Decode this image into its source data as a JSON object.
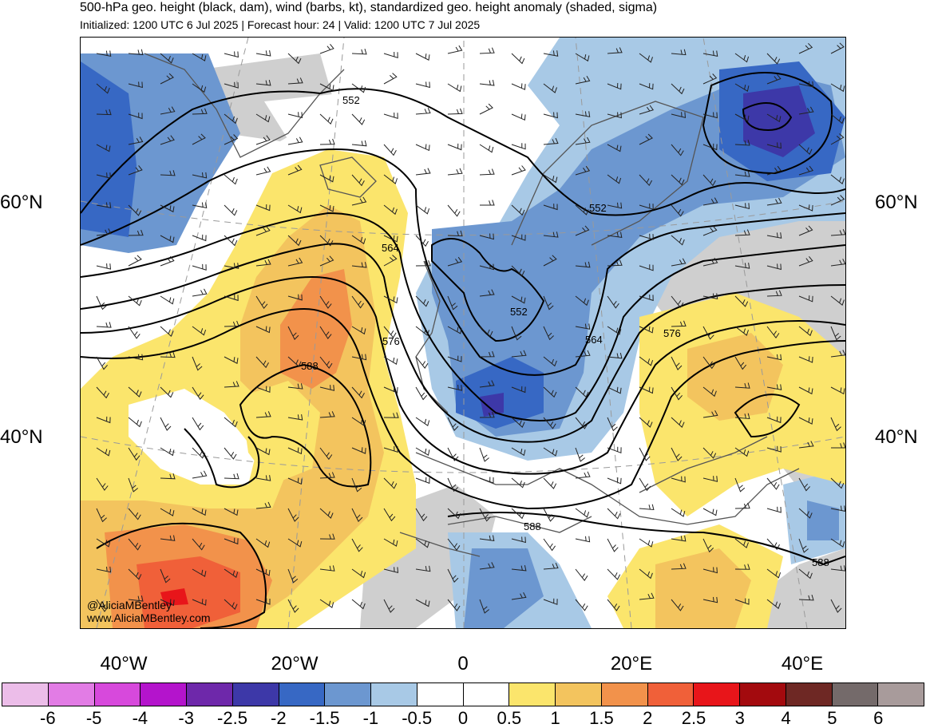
{
  "title": "500-hPa geo. height (black, dam), wind (barbs, kt), standardized geo. height anomaly (shaded, sigma)",
  "subtitle": "Initialized: 1200 UTC 6 Jul 2025 | Forecast hour: 24 | Valid: 1200 UTC 7 Jul 2025",
  "credit": {
    "handle": "@AliciaMBentley",
    "site": "www.AliciaMBentley.com"
  },
  "lat_labels": [
    "60°N",
    "40°N"
  ],
  "lon_labels": [
    "40°W",
    "20°W",
    "0",
    "20°E",
    "40°E"
  ],
  "contour_labels": [
    "552",
    "564",
    "552",
    "552",
    "576",
    "588",
    "564",
    "576",
    "588",
    "588"
  ],
  "colorbar": {
    "colors": [
      "#ecbde9",
      "#e27ce5",
      "#d749dc",
      "#b414cc",
      "#6e28aa",
      "#3d38a8",
      "#3768c4",
      "#6c97d0",
      "#a8c9e6",
      "#ffffff",
      "#ffffff",
      "#fbe56c",
      "#f3c45e",
      "#f2924b",
      "#f06039",
      "#e8151a",
      "#a30a0e",
      "#6e2824",
      "#746a6a",
      "#a89b9b"
    ],
    "labels": [
      "-6",
      "-5",
      "-4",
      "-3",
      "-2.5",
      "-2",
      "-1.5",
      "-1",
      "-0.5",
      "0",
      "0.5",
      "1",
      "1.5",
      "2",
      "2.5",
      "3",
      "4",
      "5",
      "6"
    ]
  },
  "colors": {
    "land_gray": "#cfcfcf",
    "contour": "#000000",
    "coastline": "#555555"
  }
}
